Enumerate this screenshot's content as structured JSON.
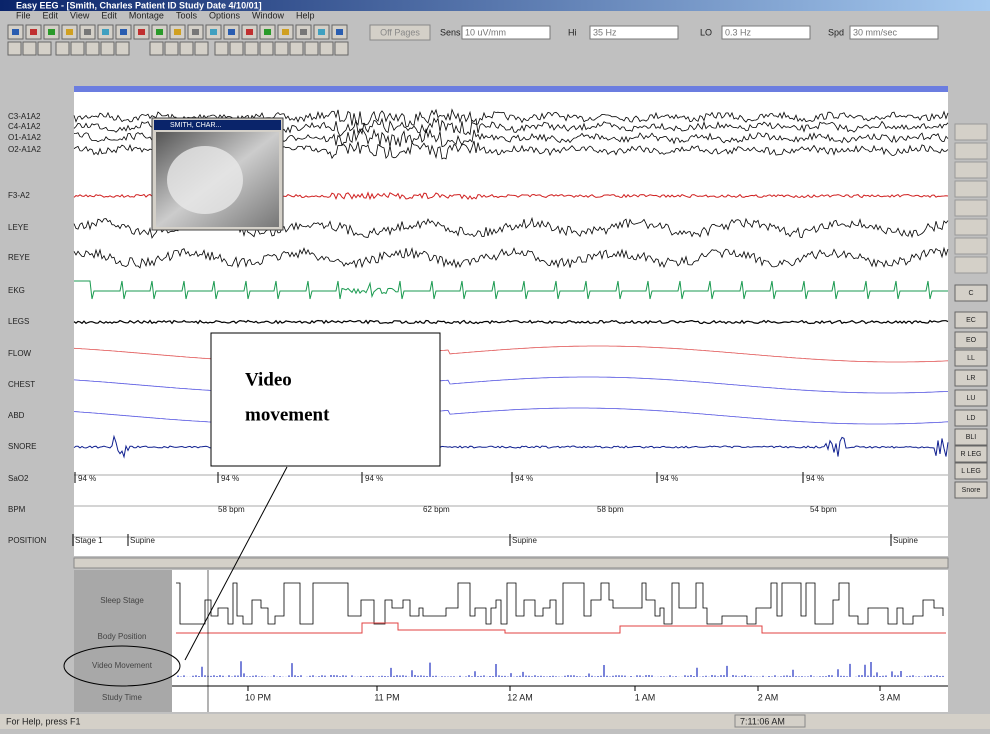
{
  "window": {
    "title": "Easy EEG - [Smith, Charles  Patient ID  Study Date 4/10/01]",
    "menu": [
      "File",
      "Edit",
      "View",
      "Edit",
      "Montage",
      "Tools",
      "Options",
      "Window",
      "Help"
    ],
    "status": "For Help, press F1",
    "clock": "7:11:06 AM"
  },
  "toolbar": {
    "off_pages": "Off Pages",
    "fields": [
      {
        "label": "Sens",
        "value": "10 uV/mm"
      },
      {
        "label": "Hi",
        "value": "35 Hz"
      },
      {
        "label": "LO",
        "value": "0.3 Hz"
      },
      {
        "label": "Spd",
        "value": "30 mm/sec"
      }
    ]
  },
  "channels": [
    "C3-A1A2",
    "C4-A1A2",
    "O1-A1A2",
    "O2-A1A2",
    "F3-A2",
    "LEYE",
    "REYE",
    "EKG",
    "LEGS",
    "FLOW",
    "CHEST",
    "ABD",
    "SNORE",
    "SaO2",
    "BPM",
    "POSITION"
  ],
  "sao2_labels": [
    "94 %",
    "94 %",
    "94 %",
    "94 %",
    "94 %",
    "94 %"
  ],
  "bpm_labels": [
    "58 bpm",
    "62 bpm",
    "58 bpm",
    "54 bpm"
  ],
  "position_labels": [
    "Stage 1",
    "Supine",
    "Supine",
    "Supine"
  ],
  "side_buttons": [
    "C",
    "EC",
    "EO",
    "LL",
    "LR",
    "LU",
    "LD",
    "BLI",
    "R LEG",
    "L LEG",
    "Snore"
  ],
  "video_window_title": "SMITH, CHAR...",
  "hypnogram": {
    "rows": [
      "Sleep Stage",
      "Body Position",
      "Video Movement",
      "Study Time"
    ],
    "times": [
      "10 PM",
      "11 PM",
      "12 AM",
      "1 AM",
      "2 AM",
      "3 AM"
    ]
  },
  "callout": [
    "Video",
    "movement"
  ]
}
